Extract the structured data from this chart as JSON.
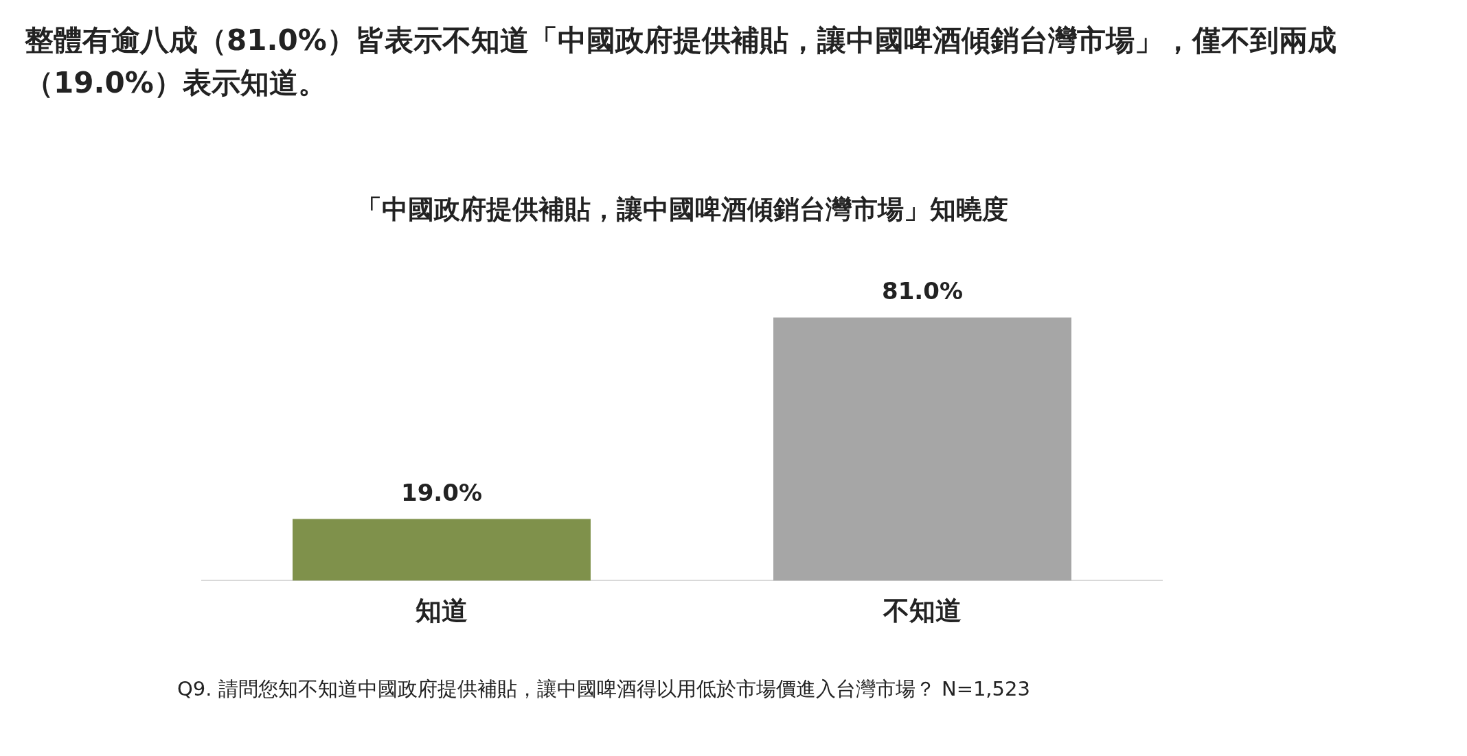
{
  "chart_data": {
    "type": "bar",
    "title": "整體有逾八成（81.0%）皆表示不知道「中國政府提供補貼，讓中國啤酒傾銷台灣市場」，僅不到兩成（19.0%）表示知道。",
    "subtitle": "「中國政府提供補貼，讓中國啤酒傾銷台灣市場」知曉度",
    "categories": [
      "知道",
      "不知道"
    ],
    "values": [
      19.0,
      81.0
    ],
    "colors": [
      "#7f914b",
      "#a6a6a6"
    ],
    "value_labels": [
      "19.0%",
      "81.0%"
    ],
    "grid": false,
    "legend": false,
    "tick_labels": "x",
    "annotations": [
      "Q9. 請問您知不知道中國政府提供補貼，讓中國啤酒得以用低於市場價進入台灣市場？ N=1,523"
    ]
  }
}
